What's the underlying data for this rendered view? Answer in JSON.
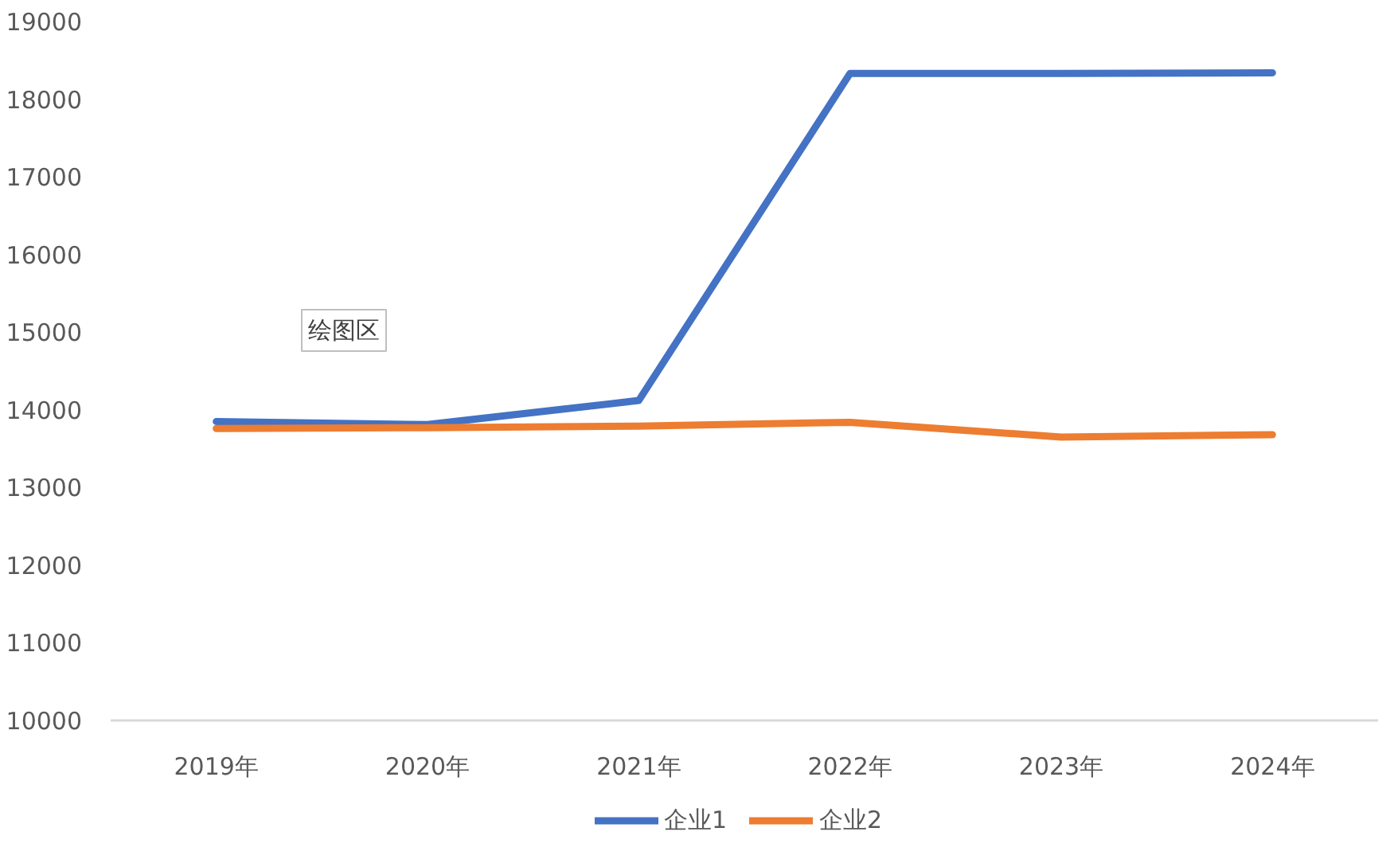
{
  "chart_data": {
    "type": "line",
    "categories": [
      "2019年",
      "2020年",
      "2021年",
      "2022年",
      "2023年",
      "2024年"
    ],
    "series": [
      {
        "name": "企业1",
        "color": "#4472c4",
        "values": [
          13850,
          13810,
          14120,
          18330,
          18330,
          18340
        ]
      },
      {
        "name": "企业2",
        "color": "#ed7d31",
        "values": [
          13760,
          13770,
          13790,
          13840,
          13650,
          13680
        ]
      }
    ],
    "ylim": [
      10000,
      19000
    ],
    "yticks": [
      10000,
      11000,
      12000,
      13000,
      14000,
      15000,
      16000,
      17000,
      18000,
      19000
    ],
    "grid": false,
    "legend": "bottom",
    "marker": "none",
    "line_style": "solid",
    "annotations": [
      "绘图区"
    ]
  }
}
